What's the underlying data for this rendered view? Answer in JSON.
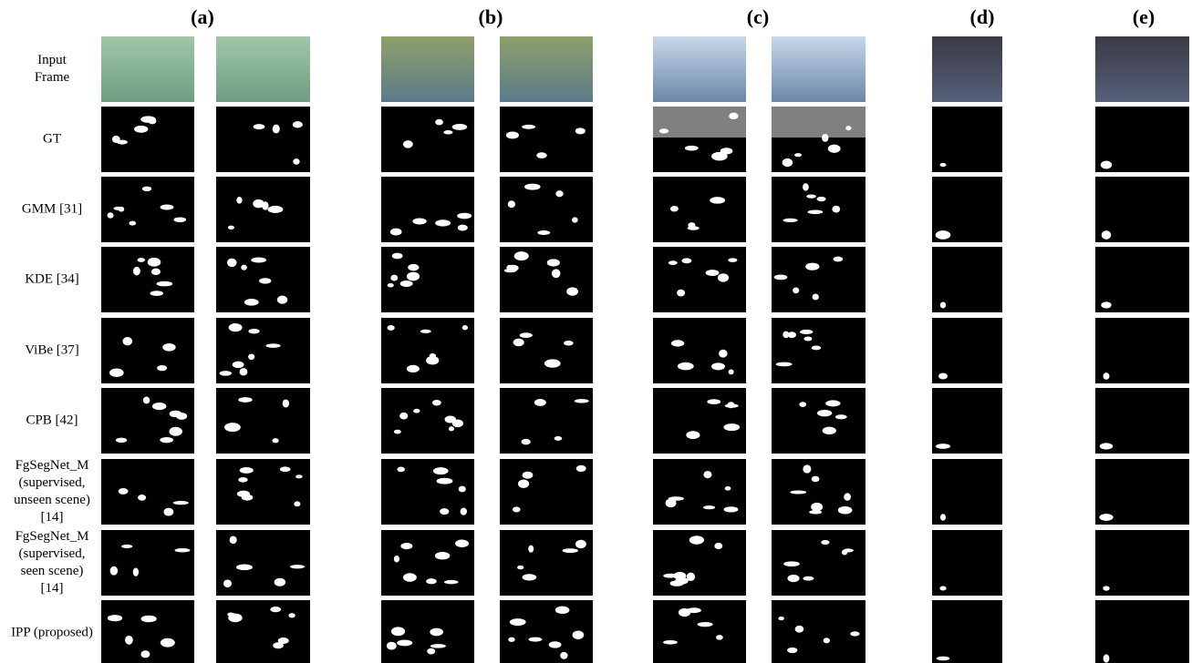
{
  "columns": [
    "(a)",
    "(b)",
    "(c)",
    "(d)",
    "(e)"
  ],
  "row_labels": [
    [
      "Input",
      "Frame"
    ],
    [
      "GT"
    ],
    [
      "GMM [31]"
    ],
    [
      "KDE [34]"
    ],
    [
      "ViBe [37]"
    ],
    [
      "CPB [42]"
    ],
    [
      "FgSegNet_M",
      "(supervised,",
      "unseen scene)",
      "[14]"
    ],
    [
      "FgSegNet_M",
      "(supervised,",
      "seen scene)",
      "[14]"
    ],
    [
      "IPP (proposed)"
    ]
  ]
}
